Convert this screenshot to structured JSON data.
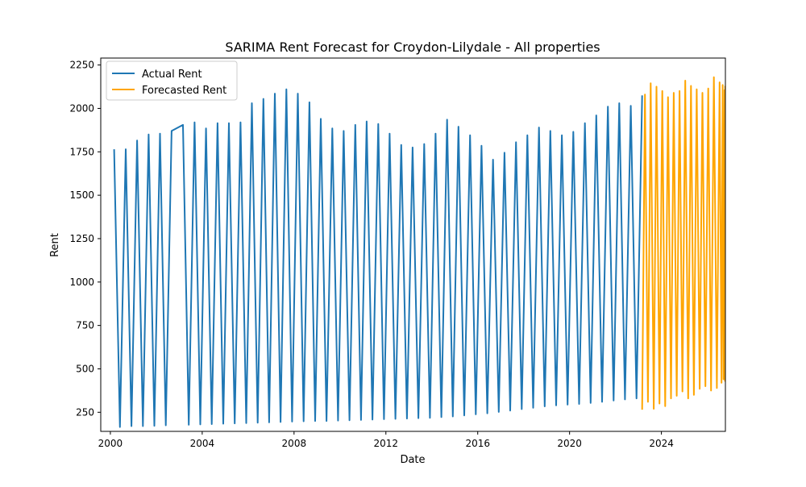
{
  "chart_data": {
    "type": "line",
    "title": "SARIMA Rent Forecast for Croydon-Lilydale - All properties",
    "xlabel": "Date",
    "ylabel": "Rent",
    "xlim": [
      "1999-08-01",
      "2026-10-15"
    ],
    "ylim": [
      140,
      2290
    ],
    "x_ticks": [
      "2000",
      "2004",
      "2008",
      "2012",
      "2016",
      "2020",
      "2024"
    ],
    "y_ticks": [
      "250",
      "500",
      "750",
      "1000",
      "1250",
      "1500",
      "1750",
      "2000",
      "2250"
    ],
    "grid": false,
    "legend": "top-left",
    "series": [
      {
        "name": "Actual Rent",
        "color": "#1f77b4",
        "points": [
          [
            "2000-03-01",
            1765
          ],
          [
            "2000-06-01",
            165
          ],
          [
            "2000-09-01",
            1765
          ],
          [
            "2000-12-01",
            170
          ],
          [
            "2001-03-01",
            1815
          ],
          [
            "2001-06-01",
            170
          ],
          [
            "2001-09-01",
            1850
          ],
          [
            "2001-12-01",
            172
          ],
          [
            "2002-03-01",
            1855
          ],
          [
            "2002-06-01",
            175
          ],
          [
            "2002-09-01",
            1870
          ],
          [
            "2003-03-01",
            1905
          ],
          [
            "2003-06-01",
            178
          ],
          [
            "2003-09-01",
            1920
          ],
          [
            "2003-12-01",
            180
          ],
          [
            "2004-03-01",
            1885
          ],
          [
            "2004-06-01",
            182
          ],
          [
            "2004-09-01",
            1915
          ],
          [
            "2004-12-01",
            184
          ],
          [
            "2005-03-01",
            1915
          ],
          [
            "2005-06-01",
            186
          ],
          [
            "2005-09-01",
            1920
          ],
          [
            "2005-12-01",
            188
          ],
          [
            "2006-03-01",
            2030
          ],
          [
            "2006-06-01",
            190
          ],
          [
            "2006-09-01",
            2055
          ],
          [
            "2006-12-01",
            192
          ],
          [
            "2007-03-01",
            2085
          ],
          [
            "2007-06-01",
            194
          ],
          [
            "2007-09-01",
            2110
          ],
          [
            "2007-12-01",
            196
          ],
          [
            "2008-03-01",
            2085
          ],
          [
            "2008-06-01",
            198
          ],
          [
            "2008-09-01",
            2035
          ],
          [
            "2008-12-01",
            200
          ],
          [
            "2009-03-01",
            1940
          ],
          [
            "2009-06-01",
            200
          ],
          [
            "2009-09-01",
            1885
          ],
          [
            "2009-12-01",
            202
          ],
          [
            "2010-03-01",
            1870
          ],
          [
            "2010-06-01",
            204
          ],
          [
            "2010-09-01",
            1905
          ],
          [
            "2010-12-01",
            206
          ],
          [
            "2011-03-01",
            1925
          ],
          [
            "2011-06-01",
            208
          ],
          [
            "2011-09-01",
            1910
          ],
          [
            "2011-12-01",
            210
          ],
          [
            "2012-03-01",
            1855
          ],
          [
            "2012-06-01",
            212
          ],
          [
            "2012-09-01",
            1790
          ],
          [
            "2012-12-01",
            214
          ],
          [
            "2013-03-01",
            1775
          ],
          [
            "2013-06-01",
            216
          ],
          [
            "2013-09-01",
            1795
          ],
          [
            "2013-12-01",
            218
          ],
          [
            "2014-03-01",
            1855
          ],
          [
            "2014-06-01",
            222
          ],
          [
            "2014-09-01",
            1935
          ],
          [
            "2014-12-01",
            226
          ],
          [
            "2015-03-01",
            1895
          ],
          [
            "2015-06-01",
            232
          ],
          [
            "2015-09-01",
            1845
          ],
          [
            "2015-12-01",
            238
          ],
          [
            "2016-03-01",
            1785
          ],
          [
            "2016-06-01",
            244
          ],
          [
            "2016-09-01",
            1705
          ],
          [
            "2016-12-01",
            252
          ],
          [
            "2017-03-01",
            1745
          ],
          [
            "2017-06-01",
            260
          ],
          [
            "2017-09-01",
            1805
          ],
          [
            "2017-12-01",
            268
          ],
          [
            "2018-03-01",
            1845
          ],
          [
            "2018-06-01",
            276
          ],
          [
            "2018-09-01",
            1890
          ],
          [
            "2018-12-01",
            284
          ],
          [
            "2019-03-01",
            1870
          ],
          [
            "2019-06-01",
            290
          ],
          [
            "2019-09-01",
            1845
          ],
          [
            "2019-12-01",
            294
          ],
          [
            "2020-03-01",
            1865
          ],
          [
            "2020-06-01",
            298
          ],
          [
            "2020-09-01",
            1915
          ],
          [
            "2020-12-01",
            304
          ],
          [
            "2021-03-01",
            1960
          ],
          [
            "2021-06-01",
            310
          ],
          [
            "2021-09-01",
            2010
          ],
          [
            "2021-12-01",
            318
          ],
          [
            "2022-03-01",
            2030
          ],
          [
            "2022-06-01",
            324
          ],
          [
            "2022-09-01",
            2015
          ],
          [
            "2022-12-01",
            330
          ],
          [
            "2023-03-01",
            2075
          ]
        ]
      },
      {
        "name": "Forecasted Rent",
        "color": "#ffa500",
        "points": [
          [
            "2023-03-01",
            265
          ],
          [
            "2023-04-15",
            2080
          ],
          [
            "2023-06-01",
            310
          ],
          [
            "2023-07-15",
            2145
          ],
          [
            "2023-09-01",
            270
          ],
          [
            "2023-10-15",
            2125
          ],
          [
            "2023-12-01",
            300
          ],
          [
            "2024-01-15",
            2100
          ],
          [
            "2024-03-01",
            285
          ],
          [
            "2024-04-15",
            2065
          ],
          [
            "2024-06-01",
            330
          ],
          [
            "2024-07-15",
            2090
          ],
          [
            "2024-09-01",
            345
          ],
          [
            "2024-10-15",
            2100
          ],
          [
            "2024-12-01",
            370
          ],
          [
            "2025-01-15",
            2160
          ],
          [
            "2025-03-01",
            330
          ],
          [
            "2025-04-15",
            2130
          ],
          [
            "2025-06-01",
            350
          ],
          [
            "2025-07-15",
            2110
          ],
          [
            "2025-09-01",
            385
          ],
          [
            "2025-10-15",
            2090
          ],
          [
            "2025-12-01",
            400
          ],
          [
            "2026-01-15",
            2115
          ],
          [
            "2026-03-01",
            375
          ],
          [
            "2026-04-15",
            2180
          ],
          [
            "2026-06-01",
            390
          ],
          [
            "2026-07-15",
            2150
          ],
          [
            "2026-08-15",
            420
          ],
          [
            "2026-09-01",
            2135
          ],
          [
            "2026-09-15",
            440
          ],
          [
            "2026-10-01",
            2105
          ],
          [
            "2026-10-10",
            430
          ],
          [
            "2026-10-12",
            2130
          ]
        ]
      }
    ]
  }
}
